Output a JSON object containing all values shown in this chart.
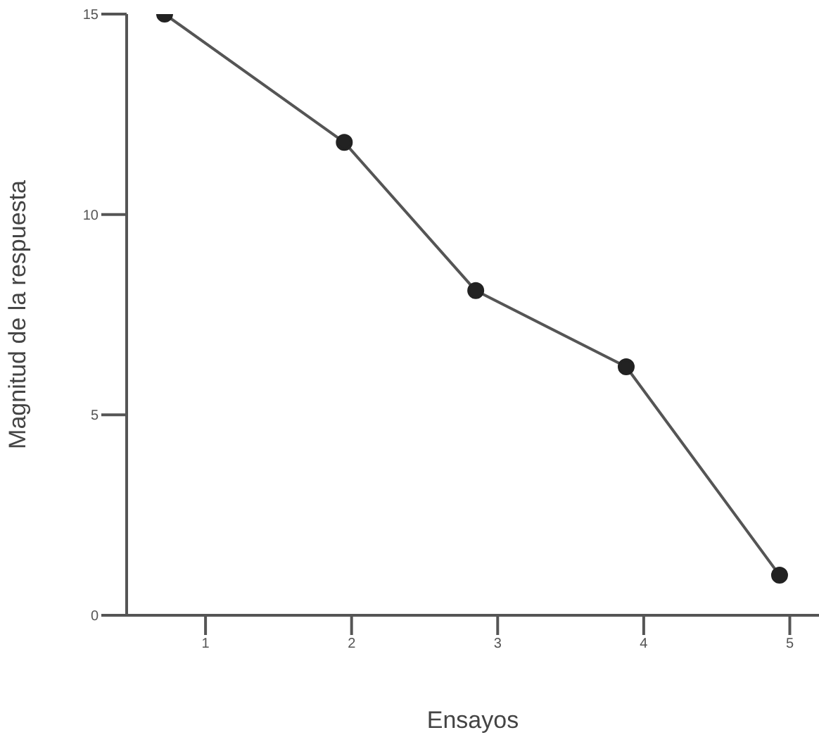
{
  "chart_data": {
    "type": "line",
    "xlabel": "Ensayos",
    "ylabel": "Magnitud de la respuesta",
    "x": [
      0.72,
      1.95,
      2.85,
      3.88,
      4.93
    ],
    "series": [
      {
        "color": "#555555",
        "values": [
          15,
          11.8,
          8.1,
          6.2,
          1.0
        ]
      }
    ],
    "xlim": [
      0.46,
      5.2
    ],
    "xticks": [
      1,
      2,
      3,
      4,
      5
    ],
    "ylim": [
      0,
      15
    ],
    "yticks": [
      0,
      5,
      10,
      15
    ],
    "grid": false,
    "legend": false,
    "marker": "circle",
    "line_style": "solid"
  }
}
